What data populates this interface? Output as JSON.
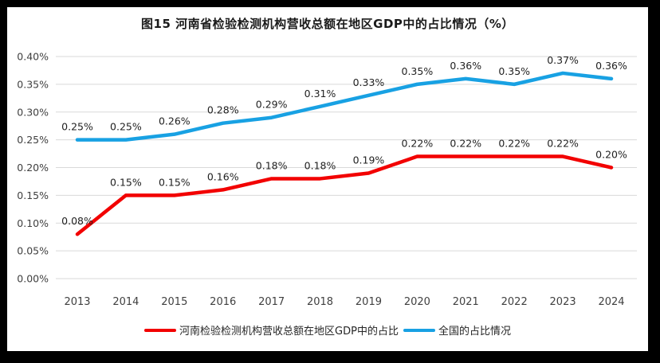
{
  "title": "图15  河南省检验检测机构营收总额在地区GDP中的占比情况（%）",
  "frame": {
    "border_color": "#000000",
    "panel_background": "#ffffff"
  },
  "chart_data": {
    "type": "line",
    "title": "图15  河南省检验检测机构营收总额在地区GDP中的占比情况（%）",
    "categories": [
      "2013",
      "2014",
      "2015",
      "2016",
      "2017",
      "2018",
      "2019",
      "2020",
      "2021",
      "2022",
      "2023",
      "2024"
    ],
    "series": [
      {
        "name": "河南检验检测机构营收总额在地区GDP中的占比",
        "color": "#F20000",
        "values": [
          0.08,
          0.15,
          0.15,
          0.16,
          0.18,
          0.18,
          0.19,
          0.22,
          0.22,
          0.22,
          0.22,
          0.2
        ],
        "point_labels": [
          "0.08%",
          "0.15%",
          "0.15%",
          "0.16%",
          "0.18%",
          "0.18%",
          "0.19%",
          "0.22%",
          "0.22%",
          "0.22%",
          "0.22%",
          "0.20%"
        ]
      },
      {
        "name": "全国的占比情况",
        "color": "#18A1E3",
        "values": [
          0.25,
          0.25,
          0.26,
          0.28,
          0.29,
          0.31,
          0.33,
          0.35,
          0.36,
          0.35,
          0.37,
          0.36
        ],
        "point_labels": [
          "0.25%",
          "0.25%",
          "0.26%",
          "0.28%",
          "0.29%",
          "0.31%",
          "0.33%",
          "0.35%",
          "0.36%",
          "0.35%",
          "0.37%",
          "0.36%"
        ]
      }
    ],
    "xlabel": "",
    "ylabel": "",
    "ylim": [
      0,
      0.4
    ],
    "y_ticks": [
      "0.00%",
      "0.05%",
      "0.10%",
      "0.15%",
      "0.20%",
      "0.25%",
      "0.30%",
      "0.35%",
      "0.40%"
    ],
    "grid": true,
    "gridline_color": "#D9D9D9",
    "tick_label_color": "#404040",
    "data_label_color": "#1f1f1f",
    "legend_position": "bottom"
  }
}
